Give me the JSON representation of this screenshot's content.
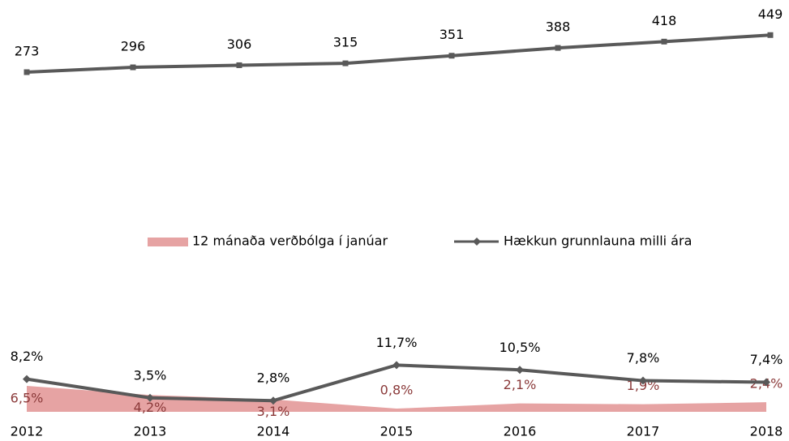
{
  "chart_data": [
    {
      "type": "line",
      "values": [
        273,
        296,
        306,
        315,
        351,
        388,
        418,
        449
      ],
      "color": "#595959",
      "marker": "square",
      "ylim": [
        0,
        500
      ]
    },
    {
      "type": "combo",
      "categories": [
        "2012",
        "2013",
        "2014",
        "2015",
        "2016",
        "2017",
        "2018"
      ],
      "series": [
        {
          "name": "12 mánaða verðbólga í janúar",
          "type": "area",
          "color": "#e6a3a3",
          "label_color": "#8b3a3a",
          "values": [
            6.5,
            4.2,
            3.1,
            0.8,
            2.1,
            1.9,
            2.4
          ],
          "value_labels": [
            "6,5%",
            "4,2%",
            "3,1%",
            "0,8%",
            "2,1%",
            "1,9%",
            "2,4%"
          ]
        },
        {
          "name": "Hækkun grunnlauna milli ára",
          "type": "line",
          "color": "#595959",
          "label_color": "#000000",
          "marker": "diamond",
          "values": [
            8.2,
            3.5,
            2.8,
            11.7,
            10.5,
            7.8,
            7.4
          ],
          "value_labels": [
            "8,2%",
            "3,5%",
            "2,8%",
            "11,7%",
            "10,5%",
            "7,8%",
            "7,4%"
          ]
        }
      ],
      "ylim": [
        0,
        14
      ]
    }
  ]
}
